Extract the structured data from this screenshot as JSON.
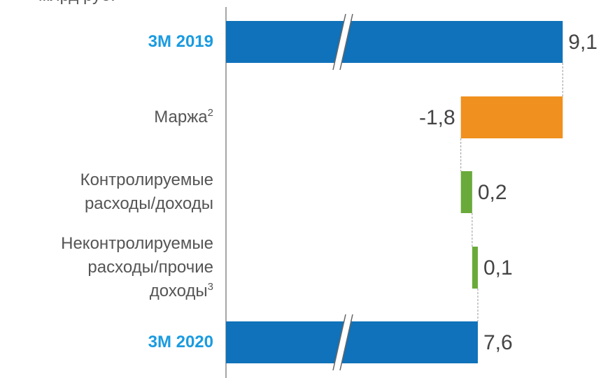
{
  "chart_data": {
    "type": "waterfall",
    "unit_label": "млрд руб.",
    "categories": [
      "3М 2019",
      "Маржа",
      "Контролируемые\nрасходы/доходы",
      "Неконтролируемые\nрасходы/прочие\nдоходы",
      "3М 2020"
    ],
    "footnotes": [
      null,
      "2",
      null,
      "3",
      null
    ],
    "totals": [
      true,
      false,
      false,
      false,
      true
    ],
    "values": [
      9.1,
      -1.8,
      0.2,
      0.1,
      7.6
    ],
    "value_labels": [
      "9,1",
      "-1,8",
      "0,2",
      "0,1",
      "7,6"
    ],
    "total_color": "#0f72ba",
    "decrease_color": "#f0901e",
    "increase_color": "#6aaa3a",
    "xlim": [
      3.15,
      9.9
    ]
  }
}
